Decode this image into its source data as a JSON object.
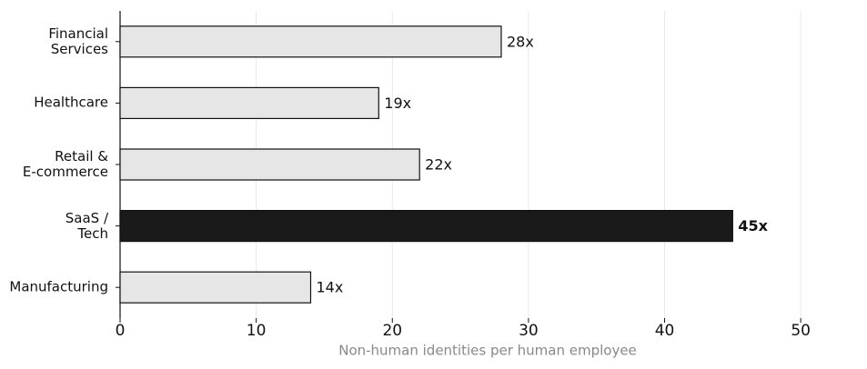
{
  "chart_data": {
    "type": "barh",
    "categories": [
      "Financial\nServices",
      "Healthcare",
      "Retail &\nE-commerce",
      "SaaS /\nTech",
      "Manufacturing"
    ],
    "values": [
      28,
      19,
      22,
      45,
      14
    ],
    "value_labels": [
      "28x",
      "19x",
      "22x",
      "45x",
      "14x"
    ],
    "colors": [
      "#e6e6e6",
      "#e6e6e6",
      "#e6e6e6",
      "#1a1a1a",
      "#e6e6e6"
    ],
    "emphasis": [
      false,
      false,
      false,
      true,
      false
    ],
    "xlabel": "Non-human identities per human employee",
    "xlim": [
      0,
      54
    ],
    "xticks": [
      0,
      10,
      20,
      30,
      40,
      50
    ],
    "grid": true
  }
}
